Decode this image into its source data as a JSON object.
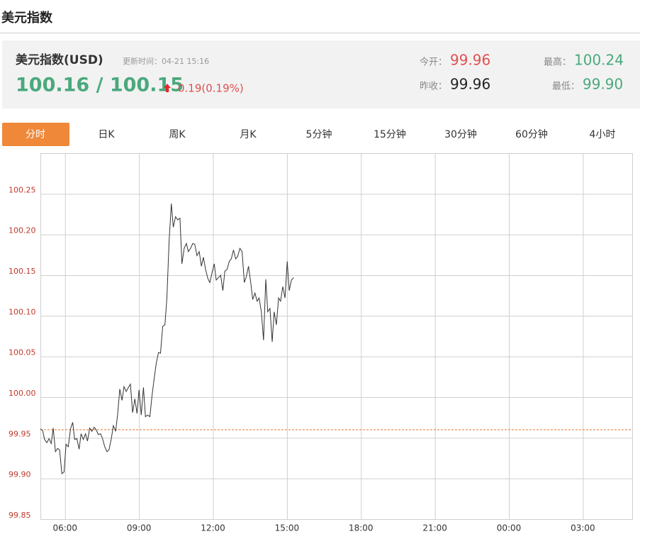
{
  "header": {
    "title": "美元指数"
  },
  "info": {
    "name": "美元指数(USD)",
    "update_time": "更新时间：04-21 15:16",
    "price": "100.16 / 100.15",
    "change": "0.19(0.19%)",
    "open_label": "今开：",
    "open": "99.96",
    "prev_close_label": "昨收：",
    "prev_close": 99.96,
    "high_label": "最高：",
    "high": "100.24",
    "low_label": "最低：",
    "low": "99.90"
  },
  "tabs": {
    "items": [
      "分时",
      "日K",
      "周K",
      "月K",
      "5分钟",
      "15分钟",
      "30分钟",
      "60分钟",
      "4小时"
    ],
    "active": 0
  },
  "chart_data": {
    "type": "line",
    "color": "#333333",
    "grid": true,
    "xlim": [
      5,
      29
    ],
    "ylim": [
      99.85,
      100.3
    ],
    "xticks": [
      {
        "value": 6,
        "label": "06:00"
      },
      {
        "value": 9,
        "label": "09:00"
      },
      {
        "value": 12,
        "label": "12:00"
      },
      {
        "value": 15,
        "label": "15:00"
      },
      {
        "value": 18,
        "label": "18:00"
      },
      {
        "value": 21,
        "label": "21:00"
      },
      {
        "value": 24,
        "label": "00:00"
      },
      {
        "value": 27,
        "label": "03:00"
      }
    ],
    "yticks": [
      99.85,
      {
        "value": 99.9,
        "label": "99.90"
      },
      99.95,
      {
        "value": 100,
        "label": "100.00"
      },
      100.05,
      {
        "value": 100.1,
        "label": "100.10"
      },
      100.15,
      {
        "value": 100.2,
        "label": "100.20"
      },
      100.25
    ],
    "x": [
      5.0,
      5.09,
      5.17,
      5.26,
      5.35,
      5.44,
      5.52,
      5.61,
      5.7,
      5.78,
      5.87,
      5.96,
      6.04,
      6.13,
      6.22,
      6.31,
      6.39,
      6.48,
      6.57,
      6.65,
      6.74,
      6.83,
      6.91,
      7.0,
      7.09,
      7.18,
      7.26,
      7.35,
      7.44,
      7.52,
      7.61,
      7.7,
      7.78,
      7.87,
      7.96,
      8.05,
      8.13,
      8.22,
      8.31,
      8.39,
      8.48,
      8.57,
      8.65,
      8.74,
      8.83,
      8.92,
      9.0,
      9.09,
      9.18,
      9.26,
      9.35,
      9.44,
      9.52,
      9.61,
      9.7,
      9.79,
      9.87,
      9.96,
      10.05,
      10.13,
      10.22,
      10.31,
      10.39,
      10.48,
      10.57,
      10.66,
      10.74,
      10.83,
      10.92,
      11.0,
      11.09,
      11.18,
      11.26,
      11.35,
      11.44,
      11.53,
      11.61,
      11.7,
      11.79,
      11.87,
      11.96,
      12.05,
      12.13,
      12.22,
      12.31,
      12.4,
      12.48,
      12.57,
      12.66,
      12.74,
      12.83,
      12.92,
      13.0,
      13.09,
      13.18,
      13.27,
      13.35,
      13.44,
      13.53,
      13.61,
      13.7,
      13.79,
      13.87,
      13.96,
      14.05,
      14.14,
      14.22,
      14.31,
      14.4,
      14.48,
      14.57,
      14.66,
      14.74,
      14.83,
      14.92,
      15.01,
      15.09,
      15.18,
      15.27
    ],
    "values": [
      99.961,
      99.959,
      99.948,
      99.944,
      99.949,
      99.943,
      99.962,
      99.933,
      99.937,
      99.935,
      99.906,
      99.908,
      99.942,
      99.939,
      99.961,
      99.969,
      99.948,
      99.949,
      99.936,
      99.955,
      99.948,
      99.955,
      99.946,
      99.962,
      99.958,
      99.963,
      99.96,
      99.954,
      99.955,
      99.949,
      99.939,
      99.933,
      99.935,
      99.948,
      99.965,
      99.958,
      99.978,
      100.01,
      99.996,
      100.013,
      100.007,
      100.012,
      100.016,
      99.981,
      99.998,
      99.98,
      100.009,
      99.978,
      100.012,
      99.976,
      99.978,
      99.976,
      100.0,
      100.022,
      100.042,
      100.055,
      100.054,
      100.087,
      100.089,
      100.122,
      100.192,
      100.238,
      100.209,
      100.222,
      100.218,
      100.22,
      100.164,
      100.183,
      100.189,
      100.179,
      100.183,
      100.189,
      100.188,
      100.174,
      100.179,
      100.161,
      100.172,
      100.157,
      100.146,
      100.141,
      100.153,
      100.164,
      100.144,
      100.147,
      100.15,
      100.131,
      100.155,
      100.157,
      100.167,
      100.17,
      100.181,
      100.17,
      100.173,
      100.183,
      100.179,
      100.141,
      100.148,
      100.161,
      100.141,
      100.12,
      100.128,
      100.118,
      100.122,
      100.105,
      100.07,
      100.145,
      100.105,
      100.109,
      100.068,
      100.105,
      100.089,
      100.122,
      100.118,
      100.136,
      100.122,
      100.167,
      100.131,
      100.144,
      100.147
    ]
  }
}
